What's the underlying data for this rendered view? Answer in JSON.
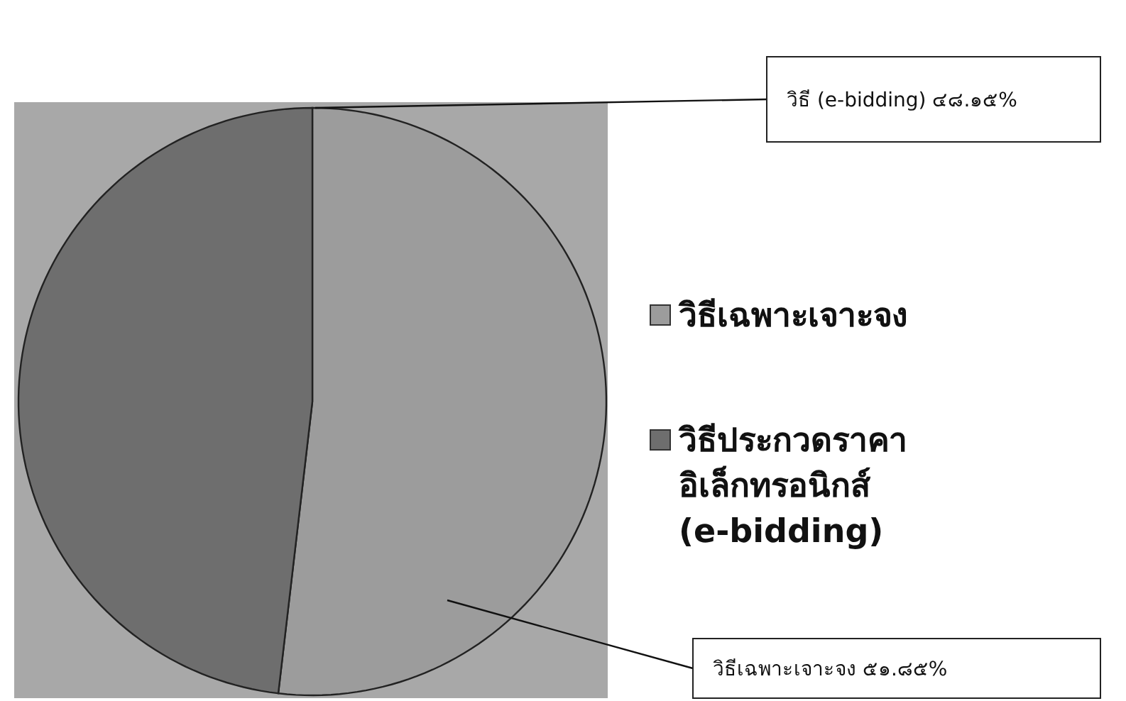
{
  "chart_data": {
    "type": "pie",
    "categories": [
      "วิธีเฉพาะเจาะจง",
      "วิธีประกวดราคาอิเล็กทรอนิกส์ (e-bidding)"
    ],
    "values": [
      51.85,
      48.15
    ],
    "colors": [
      "#9c9c9c",
      "#6e6e6e"
    ],
    "value_labels": [
      "วิธีเฉพาะเจาะจง ๕๑.๘๕%",
      "วิธี (e-bidding) ๔๘.๑๕%"
    ],
    "legend": "right"
  }
}
